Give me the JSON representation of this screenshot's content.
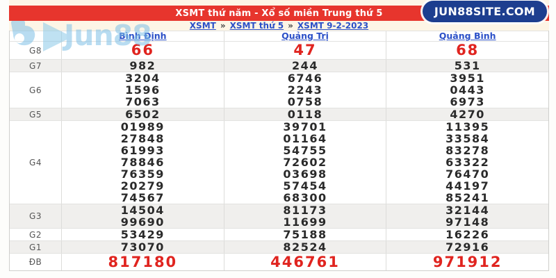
{
  "header": {
    "title": "XSMT thứ năm - Xổ số miền Trung thứ 5",
    "badge": "JUN88SITE.COM",
    "breadcrumb_separator": "»",
    "breadcrumb": [
      {
        "label": "XSMT"
      },
      {
        "label": "XSMT thứ 5"
      },
      {
        "label": "XSMT 9-2-2023"
      }
    ]
  },
  "watermark": {
    "text": "Jun88",
    "icon": "jun88-logo-icon"
  },
  "colors": {
    "red-bar": "#e7352d",
    "navy": "#1d3e8f",
    "link-blue": "#2b50c8",
    "cream": "#fdf5e6",
    "gray-row": "#f0efed",
    "num-red": "#e0241f",
    "num-black": "#2a2a2a"
  },
  "table": {
    "provinces": [
      "Bình Định",
      "Quảng Trị",
      "Quảng Bình"
    ],
    "rows": [
      {
        "label": "G8",
        "highlight": true,
        "size": "big-g8",
        "values": [
          [
            "66"
          ],
          [
            "47"
          ],
          [
            "68"
          ]
        ]
      },
      {
        "label": "G7",
        "highlight": false,
        "size": "h1",
        "values": [
          [
            "982"
          ],
          [
            "244"
          ],
          [
            "531"
          ]
        ]
      },
      {
        "label": "G6",
        "highlight": false,
        "size": "",
        "values": [
          [
            "3204",
            "1596",
            "7063"
          ],
          [
            "6746",
            "2243",
            "0758"
          ],
          [
            "3951",
            "0443",
            "6973"
          ]
        ]
      },
      {
        "label": "G5",
        "highlight": false,
        "size": "h1",
        "values": [
          [
            "6502"
          ],
          [
            "0118"
          ],
          [
            "4270"
          ]
        ]
      },
      {
        "label": "G4",
        "highlight": false,
        "size": "",
        "values": [
          [
            "01989",
            "27848",
            "61993",
            "78846",
            "76359",
            "20279",
            "74567"
          ],
          [
            "39701",
            "01164",
            "54755",
            "72602",
            "03698",
            "57454",
            "68300"
          ],
          [
            "11395",
            "33584",
            "83278",
            "63322",
            "76470",
            "44197",
            "85241"
          ]
        ]
      },
      {
        "label": "G3",
        "highlight": false,
        "size": "",
        "values": [
          [
            "14504",
            "99690"
          ],
          [
            "81173",
            "11699"
          ],
          [
            "32144",
            "97148"
          ]
        ]
      },
      {
        "label": "G2",
        "highlight": false,
        "size": "h1",
        "values": [
          [
            "53429"
          ],
          [
            "75188"
          ],
          [
            "16226"
          ]
        ]
      },
      {
        "label": "G1",
        "highlight": false,
        "size": "h1",
        "values": [
          [
            "73070"
          ],
          [
            "82524"
          ],
          [
            "72916"
          ]
        ]
      },
      {
        "label": "ĐB",
        "highlight": true,
        "size": "big-db",
        "values": [
          [
            "817180"
          ],
          [
            "446761"
          ],
          [
            "971912"
          ]
        ]
      }
    ]
  }
}
